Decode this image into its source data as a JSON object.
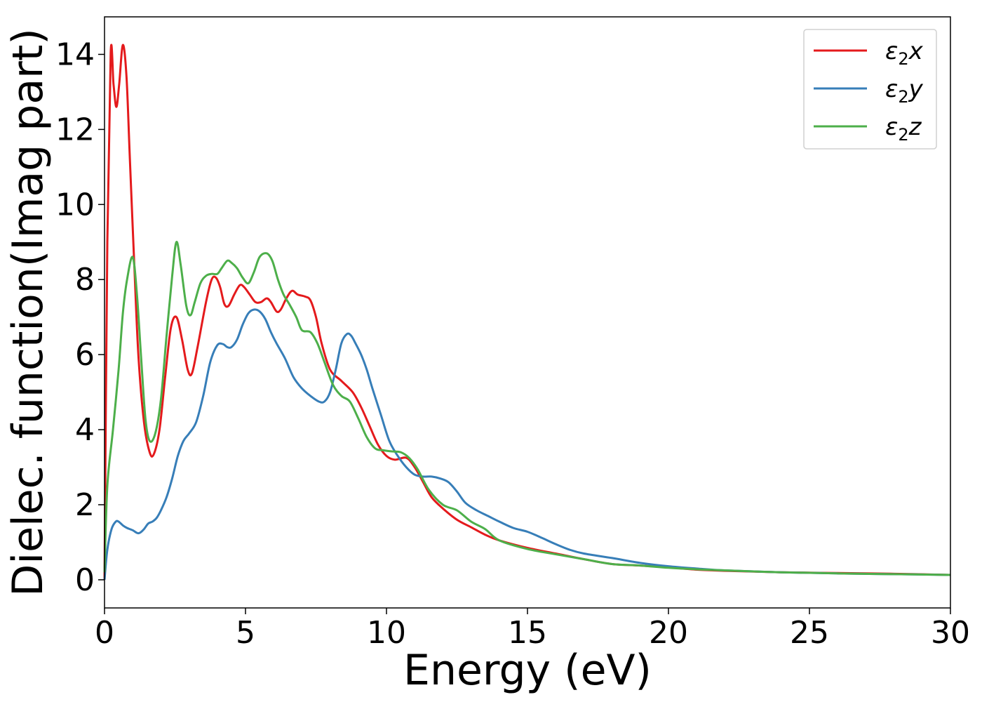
{
  "chart_data": {
    "type": "line",
    "title": "",
    "xlabel": "Energy (eV)",
    "ylabel": "Dielec. function(Imag part)",
    "xlim": [
      0,
      30
    ],
    "ylim": [
      -0.75,
      15
    ],
    "xticks": [
      0,
      5,
      10,
      15,
      20,
      25,
      30
    ],
    "yticks": [
      0,
      2,
      4,
      6,
      8,
      10,
      12,
      14
    ],
    "grid": false,
    "legend_position": "top-right",
    "series": [
      {
        "name": "ε2x",
        "legend_base": "ε",
        "legend_sub": "2",
        "legend_suffix": "x",
        "color": "#e41a1c",
        "x": [
          0,
          0.1,
          0.22,
          0.32,
          0.42,
          0.52,
          0.65,
          0.78,
          0.9,
          1.05,
          1.2,
          1.4,
          1.6,
          1.75,
          1.95,
          2.15,
          2.35,
          2.55,
          2.75,
          2.95,
          3.1,
          3.3,
          3.6,
          3.8,
          3.95,
          4.1,
          4.25,
          4.4,
          4.6,
          4.8,
          4.95,
          5.15,
          5.35,
          5.55,
          5.75,
          5.9,
          6.1,
          6.25,
          6.45,
          6.65,
          6.85,
          7.1,
          7.3,
          7.5,
          7.7,
          8.0,
          8.4,
          8.8,
          9.1,
          9.4,
          9.7,
          10.0,
          10.3,
          10.7,
          11.0,
          11.3,
          11.6,
          12.0,
          12.5,
          13.0,
          13.5,
          14.0,
          15.0,
          16.0,
          17.0,
          18.0,
          19.0,
          20.0,
          21.0,
          22.0,
          24.0,
          26.0,
          28.0,
          30.0
        ],
        "values": [
          0,
          9.0,
          14.05,
          13.2,
          12.6,
          13.2,
          14.25,
          13.4,
          11.2,
          8.5,
          6.0,
          4.2,
          3.4,
          3.35,
          4.0,
          5.4,
          6.7,
          7.0,
          6.4,
          5.6,
          5.5,
          6.2,
          7.4,
          8.0,
          8.05,
          7.8,
          7.35,
          7.3,
          7.6,
          7.85,
          7.8,
          7.6,
          7.4,
          7.4,
          7.5,
          7.4,
          7.15,
          7.2,
          7.5,
          7.7,
          7.6,
          7.55,
          7.45,
          7.0,
          6.3,
          5.6,
          5.3,
          5.0,
          4.6,
          4.1,
          3.6,
          3.3,
          3.2,
          3.25,
          3.0,
          2.6,
          2.2,
          1.9,
          1.6,
          1.4,
          1.2,
          1.05,
          0.85,
          0.7,
          0.55,
          0.42,
          0.38,
          0.33,
          0.27,
          0.24,
          0.2,
          0.18,
          0.16,
          0.13
        ]
      },
      {
        "name": "ε2y",
        "legend_base": "ε",
        "legend_sub": "2",
        "legend_suffix": "y",
        "color": "#377eb8",
        "x": [
          0,
          0.1,
          0.25,
          0.4,
          0.5,
          0.65,
          0.8,
          1.0,
          1.15,
          1.25,
          1.4,
          1.55,
          1.7,
          1.85,
          2.0,
          2.2,
          2.4,
          2.6,
          2.8,
          3.0,
          3.25,
          3.5,
          3.75,
          4.0,
          4.2,
          4.35,
          4.5,
          4.7,
          4.9,
          5.1,
          5.3,
          5.5,
          5.7,
          5.9,
          6.1,
          6.4,
          6.7,
          7.0,
          7.3,
          7.6,
          7.8,
          8.0,
          8.2,
          8.4,
          8.6,
          8.75,
          8.9,
          9.1,
          9.3,
          9.5,
          9.8,
          10.1,
          10.4,
          10.7,
          11.0,
          11.3,
          11.6,
          11.9,
          12.2,
          12.5,
          12.8,
          13.2,
          13.6,
          14.0,
          14.5,
          15.0,
          15.5,
          16.0,
          16.5,
          17.0,
          18.0,
          19.0,
          20.0,
          21.0,
          22.0,
          24.0,
          26.0,
          28.0,
          30.0
        ],
        "values": [
          0,
          0.8,
          1.35,
          1.55,
          1.55,
          1.45,
          1.38,
          1.32,
          1.25,
          1.25,
          1.35,
          1.5,
          1.55,
          1.65,
          1.85,
          2.2,
          2.7,
          3.3,
          3.7,
          3.9,
          4.2,
          4.9,
          5.8,
          6.25,
          6.28,
          6.2,
          6.2,
          6.4,
          6.8,
          7.1,
          7.2,
          7.15,
          6.95,
          6.6,
          6.3,
          5.9,
          5.4,
          5.1,
          4.9,
          4.75,
          4.75,
          5.0,
          5.6,
          6.3,
          6.55,
          6.5,
          6.3,
          6.0,
          5.6,
          5.1,
          4.4,
          3.7,
          3.3,
          3.0,
          2.8,
          2.75,
          2.75,
          2.7,
          2.6,
          2.35,
          2.05,
          1.85,
          1.7,
          1.55,
          1.38,
          1.28,
          1.12,
          0.95,
          0.8,
          0.7,
          0.58,
          0.45,
          0.36,
          0.3,
          0.25,
          0.2,
          0.17,
          0.15,
          0.13
        ]
      },
      {
        "name": "ε2z",
        "legend_base": "ε",
        "legend_sub": "2",
        "legend_suffix": "z",
        "color": "#4daf4a",
        "x": [
          0,
          0.1,
          0.3,
          0.5,
          0.65,
          0.8,
          1.0,
          1.15,
          1.3,
          1.45,
          1.6,
          1.8,
          2.0,
          2.2,
          2.4,
          2.55,
          2.7,
          2.9,
          3.05,
          3.2,
          3.4,
          3.6,
          3.8,
          4.0,
          4.15,
          4.35,
          4.5,
          4.7,
          4.9,
          5.1,
          5.3,
          5.5,
          5.75,
          5.95,
          6.15,
          6.35,
          6.55,
          6.8,
          7.0,
          7.3,
          7.55,
          7.8,
          8.1,
          8.4,
          8.7,
          9.0,
          9.3,
          9.6,
          9.9,
          10.2,
          10.5,
          10.8,
          11.1,
          11.5,
          12.0,
          12.5,
          13.0,
          13.5,
          14.0,
          15.0,
          16.0,
          17.0,
          18.0,
          19.0,
          20.0,
          21.0,
          22.0,
          24.0,
          26.0,
          28.0,
          30.0
        ],
        "values": [
          0.2,
          2.5,
          4.0,
          5.6,
          7.1,
          8.0,
          8.6,
          7.6,
          5.9,
          4.3,
          3.7,
          3.9,
          4.8,
          6.5,
          8.1,
          9.0,
          8.4,
          7.3,
          7.05,
          7.4,
          7.9,
          8.1,
          8.15,
          8.15,
          8.3,
          8.5,
          8.45,
          8.3,
          8.05,
          7.9,
          8.2,
          8.6,
          8.7,
          8.5,
          8.0,
          7.6,
          7.35,
          7.0,
          6.65,
          6.6,
          6.3,
          5.8,
          5.2,
          4.9,
          4.75,
          4.3,
          3.8,
          3.5,
          3.45,
          3.42,
          3.4,
          3.25,
          2.95,
          2.4,
          2.0,
          1.85,
          1.55,
          1.35,
          1.05,
          0.82,
          0.68,
          0.55,
          0.42,
          0.38,
          0.32,
          0.28,
          0.25,
          0.2,
          0.17,
          0.15,
          0.13
        ]
      }
    ]
  }
}
